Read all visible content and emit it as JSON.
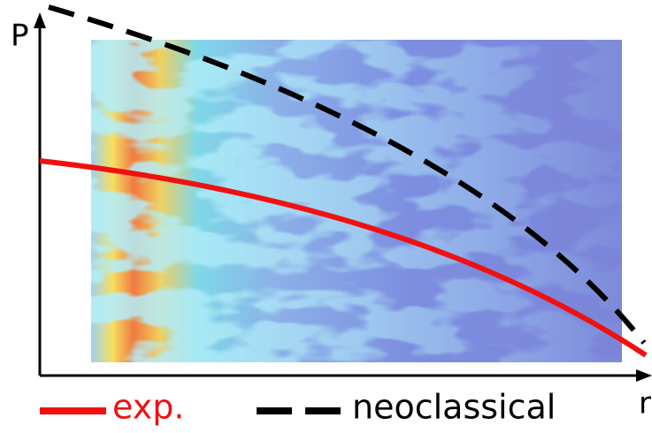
{
  "axes": {
    "y_label": "P",
    "x_label": "r"
  },
  "legend": [
    {
      "label": "exp."
    },
    {
      "label": "neoclassical"
    }
  ]
}
